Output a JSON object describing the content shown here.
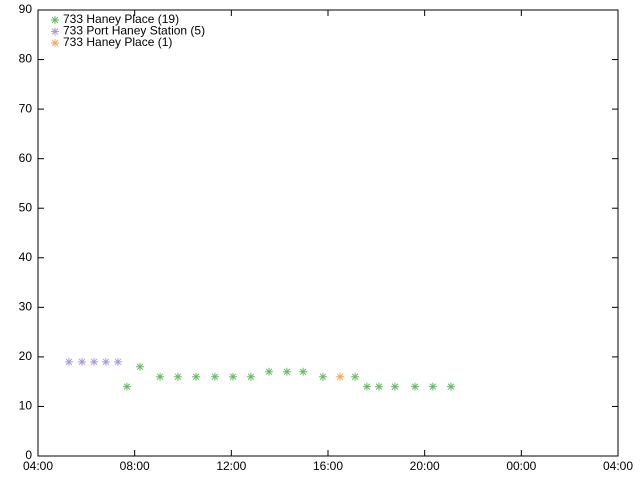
{
  "chart_data": {
    "type": "scatter",
    "xlim": [
      4,
      28
    ],
    "xticks": [
      {
        "value": 4,
        "label": "04:00"
      },
      {
        "value": 8,
        "label": "08:00"
      },
      {
        "value": 12,
        "label": "12:00"
      },
      {
        "value": 16,
        "label": "16:00"
      },
      {
        "value": 20,
        "label": "20:00"
      },
      {
        "value": 24,
        "label": "00:00"
      },
      {
        "value": 28,
        "label": "04:00"
      }
    ],
    "ylim": [
      0,
      90
    ],
    "yticks": [
      0,
      10,
      20,
      30,
      40,
      50,
      60,
      70,
      80,
      90
    ],
    "legend": "top-left",
    "series": [
      {
        "name": "733 Haney Place (19)",
        "color": "#66bb66",
        "x": [
          7.68,
          8.22,
          9.05,
          9.79,
          10.54,
          11.32,
          12.07,
          12.81,
          13.56,
          14.3,
          14.97,
          15.79,
          17.12,
          17.61,
          18.11,
          18.77,
          19.6,
          20.34,
          21.09
        ],
        "values": [
          14,
          18,
          16,
          16,
          16,
          16,
          16,
          16,
          17,
          17,
          17,
          16,
          16,
          14,
          14,
          14,
          14,
          14,
          14
        ]
      },
      {
        "name": "733 Port Haney Station (5)",
        "color": "#a99bd6",
        "x": [
          5.28,
          5.82,
          6.32,
          6.81,
          7.31
        ],
        "values": [
          19,
          19,
          19,
          19,
          19
        ]
      },
      {
        "name": "733 Haney Place (1)",
        "color": "#f0a860",
        "x": [
          16.5
        ],
        "values": [
          16
        ]
      }
    ]
  }
}
